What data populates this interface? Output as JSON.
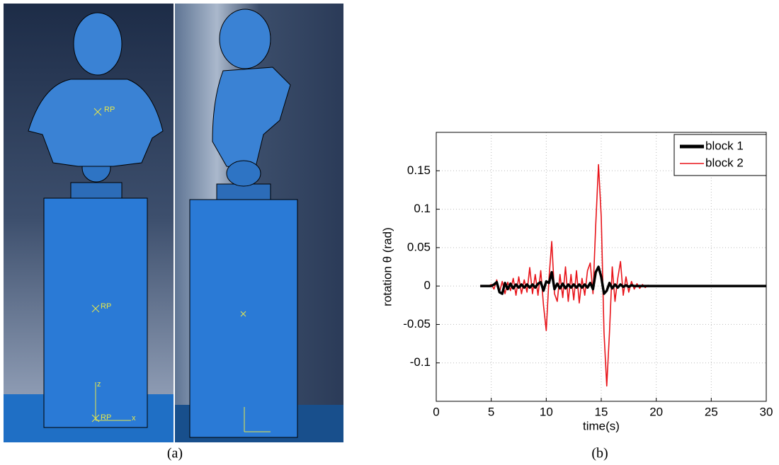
{
  "figure": {
    "caption_a": "(a)",
    "caption_b": "(b)",
    "labels": [
      "RP",
      "RP",
      "RP",
      "z",
      "x"
    ]
  },
  "chart_data": {
    "type": "line",
    "xlabel": "time(s)",
    "ylabel": "rotation θ (rad)",
    "x": [
      4,
      4.25,
      4.5,
      4.75,
      5,
      5.25,
      5.5,
      5.75,
      6,
      6.25,
      6.5,
      6.75,
      7,
      7.25,
      7.5,
      7.75,
      8,
      8.25,
      8.5,
      8.75,
      9,
      9.25,
      9.5,
      9.75,
      10,
      10.25,
      10.5,
      10.75,
      11,
      11.25,
      11.5,
      11.75,
      12,
      12.25,
      12.5,
      12.75,
      13,
      13.25,
      13.5,
      13.75,
      14,
      14.25,
      14.5,
      14.75,
      15,
      15.25,
      15.5,
      15.75,
      16,
      16.25,
      16.5,
      16.75,
      17,
      17.25,
      17.5,
      17.75,
      18,
      18.25,
      18.5,
      18.75,
      19,
      19.25,
      19.5,
      19.75,
      20,
      25,
      30
    ],
    "series": [
      {
        "name": "block 1",
        "color": "#000000",
        "values": [
          0,
          0,
          0,
          0,
          0,
          0.002,
          0.005,
          -0.008,
          -0.01,
          0.004,
          -0.004,
          0.003,
          -0.003,
          0.002,
          -0.002,
          0.002,
          -0.002,
          0.002,
          -0.002,
          0.002,
          -0.002,
          0.003,
          0.005,
          -0.006,
          0.006,
          0.004,
          0.018,
          -0.004,
          0.003,
          -0.003,
          0.003,
          -0.003,
          0.002,
          -0.002,
          0.002,
          -0.002,
          0.002,
          -0.002,
          0.002,
          -0.002,
          0.004,
          -0.004,
          0.018,
          0.025,
          0.012,
          -0.01,
          -0.006,
          0.004,
          -0.003,
          0.002,
          -0.002,
          0.002,
          -0.001,
          0.001,
          -0.001,
          0.001,
          0,
          0,
          0,
          0,
          0,
          0,
          0,
          0,
          0,
          0,
          0
        ]
      },
      {
        "name": "block 2",
        "color": "#e8141a",
        "values": [
          0,
          0,
          0,
          0,
          0.002,
          -0.004,
          0.008,
          -0.008,
          0.006,
          -0.01,
          0.005,
          -0.006,
          0.01,
          -0.012,
          0.012,
          -0.01,
          0.008,
          -0.008,
          0.024,
          -0.01,
          0.015,
          -0.012,
          0.02,
          -0.025,
          -0.058,
          0.01,
          0.058,
          -0.01,
          -0.02,
          0.015,
          -0.015,
          0.025,
          -0.02,
          0.015,
          -0.018,
          0.02,
          -0.022,
          0.01,
          -0.012,
          0.02,
          0.03,
          -0.01,
          0.08,
          0.158,
          0.09,
          -0.06,
          -0.13,
          -0.06,
          0.025,
          -0.02,
          0.01,
          0.032,
          -0.012,
          0.012,
          -0.008,
          0.006,
          -0.004,
          0.003,
          -0.003,
          0.002,
          -0.002,
          0.001,
          0,
          0,
          0,
          0,
          0
        ]
      }
    ],
    "xlim": [
      0,
      30
    ],
    "xticks": [
      0,
      5,
      10,
      15,
      20,
      25,
      30
    ],
    "ylim": [
      -0.15,
      0.2
    ],
    "yticks": [
      -0.1,
      -0.05,
      0,
      0.05,
      0.1,
      0.15
    ],
    "grid": true,
    "legend": "upper right"
  }
}
